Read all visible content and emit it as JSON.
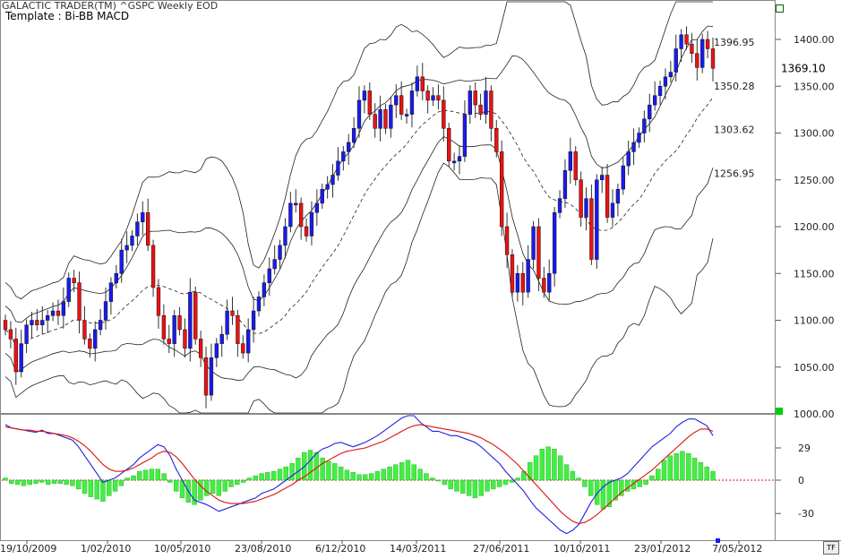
{
  "header": {
    "app_title": "GALACTIC TRADER(TM)   ^GSPC Weekly EOD",
    "template_label": "Template : Bi-BB MACD",
    "tf_button": "TF"
  },
  "colors": {
    "up": "#1a1af0",
    "down": "#ee1111",
    "band": "#222222",
    "macd_line": "#2222dd",
    "signal_line": "#dd1111",
    "histogram": "#44ee44",
    "zero_line": "#dd1111",
    "green_marker": "#00cc00"
  },
  "chart_data": [
    {
      "type": "candlestick",
      "title": "",
      "symbol": "^GSPC",
      "timeframe": "Weekly",
      "ylim": [
        1000,
        1450
      ],
      "y_ticks": [
        1000,
        1050,
        1100,
        1150,
        1200,
        1250,
        1300,
        1350,
        1400
      ],
      "x_tick_labels": [
        "19/10/2009",
        "1/02/2010",
        "10/05/2010",
        "23/08/2010",
        "6/12/2010",
        "14/03/2011",
        "27/06/2011",
        "10/10/2011",
        "23/01/2012",
        "7/05/2012"
      ],
      "last_price": "1369.10",
      "band_labels": [
        "1396.95",
        "1350.28",
        "1303.62",
        "1256.95"
      ],
      "band_label_values": [
        1396.95,
        1350.28,
        1303.62,
        1256.95
      ],
      "closes": [
        1090,
        1080,
        1045,
        1075,
        1095,
        1100,
        1095,
        1100,
        1105,
        1110,
        1105,
        1120,
        1145,
        1140,
        1100,
        1080,
        1070,
        1090,
        1100,
        1120,
        1140,
        1150,
        1175,
        1180,
        1190,
        1205,
        1215,
        1180,
        1135,
        1105,
        1080,
        1075,
        1105,
        1090,
        1070,
        1130,
        1080,
        1060,
        1020,
        1060,
        1075,
        1085,
        1110,
        1105,
        1075,
        1065,
        1090,
        1110,
        1125,
        1140,
        1155,
        1165,
        1180,
        1200,
        1225,
        1225,
        1200,
        1190,
        1215,
        1225,
        1240,
        1245,
        1255,
        1270,
        1280,
        1290,
        1305,
        1335,
        1345,
        1320,
        1305,
        1325,
        1305,
        1330,
        1340,
        1320,
        1320,
        1345,
        1360,
        1345,
        1335,
        1340,
        1335,
        1305,
        1270,
        1270,
        1275,
        1320,
        1345,
        1330,
        1320,
        1345,
        1305,
        1280,
        1200,
        1170,
        1130,
        1150,
        1130,
        1165,
        1200,
        1145,
        1130,
        1150,
        1215,
        1230,
        1260,
        1280,
        1250,
        1210,
        1230,
        1165,
        1250,
        1255,
        1210,
        1225,
        1240,
        1265,
        1280,
        1290,
        1300,
        1315,
        1330,
        1340,
        1350,
        1360,
        1365,
        1390,
        1405,
        1395,
        1385,
        1370,
        1400,
        1390,
        1369.1
      ],
      "bands": {
        "upper2": "outer upper band",
        "upper1": "inner upper band",
        "middle": "dashed midline",
        "lower1": "inner lower band",
        "lower2": "outer lower band"
      }
    },
    {
      "type": "line",
      "title": "",
      "panel": "MACD",
      "ylim": [
        -60,
        60
      ],
      "y_ticks": [
        29,
        0,
        -30
      ],
      "y_tick_labels": [
        "29",
        "0",
        "-30"
      ],
      "series": [
        {
          "role": "macd",
          "values": [
            50,
            47,
            46,
            45,
            44,
            43,
            45,
            42,
            42,
            40,
            38,
            36,
            30,
            22,
            14,
            6,
            -2,
            0,
            2,
            6,
            10,
            14,
            20,
            24,
            28,
            32,
            30,
            22,
            10,
            0,
            -10,
            -18,
            -20,
            -22,
            -25,
            -28,
            -26,
            -24,
            -22,
            -20,
            -18,
            -16,
            -12,
            -10,
            -8,
            -4,
            0,
            4,
            8,
            12,
            18,
            24,
            28,
            30,
            33,
            34,
            32,
            30,
            32,
            34,
            37,
            40,
            44,
            48,
            52,
            56,
            60,
            58,
            52,
            48,
            44,
            44,
            42,
            40,
            40,
            38,
            36,
            34,
            30,
            25,
            20,
            15,
            8,
            2,
            -4,
            -10,
            -18,
            -25,
            -30,
            -35,
            -40,
            -45,
            -48,
            -45,
            -40,
            -30,
            -20,
            -12,
            -6,
            -2,
            0,
            2,
            6,
            12,
            18,
            24,
            30,
            34,
            38,
            42,
            48,
            52,
            55,
            55,
            52,
            49,
            40
          ]
        },
        {
          "role": "signal",
          "values": [
            48,
            47,
            46,
            45,
            45,
            44,
            44,
            43,
            42,
            41,
            40,
            38,
            35,
            31,
            26,
            20,
            14,
            10,
            8,
            8,
            9,
            11,
            14,
            17,
            20,
            24,
            26,
            25,
            21,
            15,
            8,
            1,
            -5,
            -10,
            -14,
            -18,
            -20,
            -21,
            -21,
            -21,
            -20,
            -19,
            -17,
            -15,
            -13,
            -10,
            -7,
            -4,
            0,
            3,
            7,
            11,
            15,
            18,
            21,
            24,
            26,
            27,
            28,
            29,
            31,
            33,
            35,
            38,
            41,
            44,
            47,
            49,
            50,
            49,
            48,
            47,
            46,
            45,
            44,
            43,
            42,
            40,
            38,
            35,
            32,
            28,
            24,
            19,
            14,
            8,
            2,
            -4,
            -10,
            -16,
            -22,
            -28,
            -33,
            -37,
            -39,
            -38,
            -35,
            -31,
            -26,
            -21,
            -16,
            -11,
            -7,
            -3,
            1,
            5,
            9,
            14,
            19,
            24,
            29,
            34,
            39,
            43,
            46,
            46,
            44
          ]
        }
      ],
      "histogram": [
        2,
        -3,
        -4,
        -5,
        -4,
        -3,
        -2,
        -4,
        -3,
        -3,
        -4,
        -5,
        -8,
        -12,
        -15,
        -17,
        -19,
        -14,
        -10,
        -5,
        2,
        4,
        8,
        9,
        10,
        10,
        6,
        -2,
        -10,
        -16,
        -20,
        -22,
        -18,
        -14,
        -12,
        -14,
        -10,
        -6,
        -4,
        -2,
        2,
        4,
        6,
        7,
        8,
        10,
        12,
        15,
        20,
        25,
        27,
        25,
        20,
        17,
        15,
        12,
        9,
        7,
        5,
        5,
        6,
        8,
        10,
        12,
        14,
        16,
        18,
        14,
        10,
        6,
        2,
        0,
        -4,
        -8,
        -10,
        -12,
        -14,
        -16,
        -14,
        -10,
        -8,
        -6,
        -4,
        -2,
        2,
        8,
        16,
        22,
        28,
        30,
        28,
        22,
        14,
        8,
        2,
        -6,
        -14,
        -22,
        -26,
        -24,
        -18,
        -14,
        -10,
        -8,
        -6,
        -4,
        4,
        10,
        18,
        22,
        24,
        26,
        24,
        20,
        16,
        12,
        8
      ]
    }
  ]
}
